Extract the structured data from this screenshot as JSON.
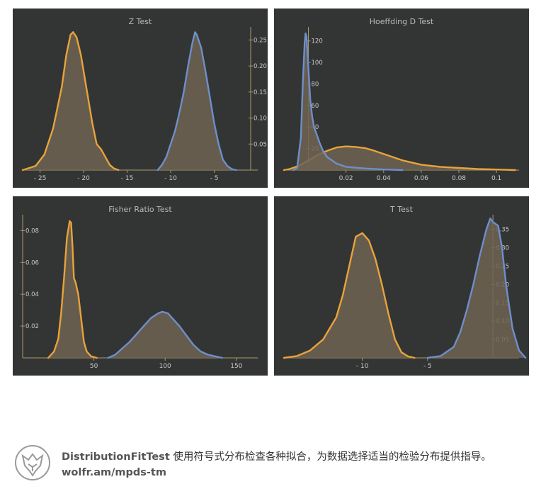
{
  "chart_data": [
    {
      "type": "area",
      "title": "Z Test",
      "x_ticks": [
        -25,
        -20,
        -15,
        -10,
        -5
      ],
      "y_ticks": [
        0.05,
        0.1,
        0.15,
        0.2,
        0.25
      ],
      "xlim": [
        -27,
        0
      ],
      "ylim": [
        0,
        0.275
      ],
      "y_axis_side": "right",
      "series": [
        {
          "color": "#e8a33a",
          "x": [
            -27,
            -25.5,
            -24.5,
            -23.5,
            -22.5,
            -22,
            -21.5,
            -21.2,
            -20.8,
            -20.3,
            -19.8,
            -19.3,
            -19,
            -18.5,
            -18,
            -17.5,
            -17,
            -16.5,
            -16
          ],
          "y": [
            0,
            0.008,
            0.03,
            0.08,
            0.16,
            0.22,
            0.26,
            0.265,
            0.255,
            0.22,
            0.17,
            0.12,
            0.09,
            0.05,
            0.04,
            0.025,
            0.01,
            0.003,
            0
          ]
        },
        {
          "color": "#6e8fc9",
          "x": [
            -11.5,
            -11,
            -10.5,
            -10,
            -9.5,
            -9,
            -8.5,
            -8,
            -7.5,
            -7.2,
            -7,
            -6.5,
            -6,
            -5.5,
            -5,
            -4.5,
            -4,
            -3.5,
            -3,
            -2.5
          ],
          "y": [
            0,
            0.01,
            0.025,
            0.05,
            0.075,
            0.11,
            0.15,
            0.2,
            0.245,
            0.265,
            0.26,
            0.235,
            0.19,
            0.14,
            0.09,
            0.05,
            0.02,
            0.008,
            0.002,
            0
          ]
        }
      ]
    },
    {
      "type": "area",
      "title": "Hoeffding D Test",
      "x_ticks": [
        0.02,
        0.04,
        0.06,
        0.08,
        0.1
      ],
      "y_ticks": [
        20,
        40,
        60,
        80,
        100,
        120
      ],
      "y_tick_labels": [
        "20",
        "40",
        "60",
        "80",
        "100",
        "120"
      ],
      "xlim": [
        -0.013,
        0.112
      ],
      "ylim": [
        0,
        133
      ],
      "y_axis_at_x": 0,
      "series": [
        {
          "color": "#e8a33a",
          "x": [
            -0.013,
            -0.01,
            -0.005,
            0,
            0.005,
            0.01,
            0.015,
            0.02,
            0.025,
            0.03,
            0.035,
            0.04,
            0.05,
            0.06,
            0.07,
            0.08,
            0.09,
            0.1,
            0.11
          ],
          "y": [
            0,
            1,
            4,
            9,
            14,
            18,
            21,
            22,
            21.5,
            20.5,
            18,
            15,
            9,
            5,
            3,
            2,
            1,
            0.5,
            0
          ]
        },
        {
          "color": "#6e8fc9",
          "x": [
            -0.008,
            -0.006,
            -0.004,
            -0.003,
            -0.002,
            -0.0015,
            -0.001,
            0,
            0.001,
            0.002,
            0.003,
            0.004,
            0.006,
            0.008,
            0.01,
            0.015,
            0.02,
            0.03,
            0.04,
            0.05
          ],
          "y": [
            0,
            2,
            30,
            80,
            118,
            127,
            124,
            95,
            65,
            50,
            40,
            35,
            25,
            17,
            12,
            6,
            3,
            1.5,
            0.5,
            0
          ]
        }
      ]
    },
    {
      "type": "area",
      "title": "Fisher Ratio Test",
      "x_ticks": [
        50,
        100,
        150
      ],
      "y_ticks": [
        0.02,
        0.04,
        0.06,
        0.08
      ],
      "y_tick_labels": [
        "0.02",
        "0.04",
        "0.06",
        "0.08"
      ],
      "xlim": [
        0,
        165
      ],
      "ylim": [
        0,
        0.09
      ],
      "y_axis_at_x": 0,
      "series": [
        {
          "color": "#e8a33a",
          "x": [
            18,
            22,
            25,
            27,
            29,
            31,
            33,
            34,
            35,
            36,
            37,
            39,
            41,
            43,
            45,
            48,
            52
          ],
          "y": [
            0,
            0.004,
            0.012,
            0.028,
            0.05,
            0.075,
            0.086,
            0.085,
            0.07,
            0.05,
            0.048,
            0.04,
            0.025,
            0.01,
            0.004,
            0.001,
            0
          ]
        },
        {
          "color": "#6e8fc9",
          "x": [
            60,
            65,
            70,
            75,
            80,
            85,
            90,
            95,
            98,
            102,
            105,
            110,
            115,
            120,
            125,
            130,
            135,
            140
          ],
          "y": [
            0,
            0.002,
            0.006,
            0.01,
            0.015,
            0.02,
            0.025,
            0.028,
            0.029,
            0.028,
            0.025,
            0.02,
            0.014,
            0.008,
            0.004,
            0.002,
            0.001,
            0
          ]
        }
      ]
    },
    {
      "type": "area",
      "title": "T Test",
      "x_ticks": [
        -10,
        -5
      ],
      "y_ticks": [
        0.05,
        0.1,
        0.15,
        0.2,
        0.25,
        0.3,
        0.35
      ],
      "y_tick_labels": [
        "0.05",
        "0.10",
        "0.15",
        "0.20",
        "0.25",
        "0.30",
        "0.35"
      ],
      "xlim": [
        -16,
        2
      ],
      "ylim": [
        0,
        0.39
      ],
      "y_axis_at_x": 0,
      "series": [
        {
          "color": "#e8a33a",
          "x": [
            -16,
            -15,
            -14,
            -13,
            -12,
            -11.5,
            -11,
            -10.5,
            -10,
            -9.5,
            -9,
            -8.5,
            -8,
            -7.5,
            -7,
            -6.5,
            -6
          ],
          "y": [
            0,
            0.005,
            0.02,
            0.05,
            0.11,
            0.17,
            0.25,
            0.33,
            0.34,
            0.32,
            0.27,
            0.2,
            0.12,
            0.05,
            0.015,
            0.004,
            0
          ]
        },
        {
          "color": "#6e8fc9",
          "x": [
            -5,
            -4,
            -3,
            -2.5,
            -2,
            -1.5,
            -1,
            -0.5,
            -0.2,
            0,
            0.4,
            0.7,
            1,
            1.5,
            2,
            2.5
          ],
          "y": [
            0,
            0.005,
            0.03,
            0.07,
            0.13,
            0.2,
            0.28,
            0.35,
            0.38,
            0.37,
            0.36,
            0.3,
            0.2,
            0.08,
            0.02,
            0
          ]
        }
      ]
    }
  ],
  "footer": {
    "tool_name": "DistributionFitTest",
    "description": " 使用符号式分布检查各种拟合，为数据选择适当的检验分布提供指导。",
    "link": "wolfr.am/mpds-tm"
  }
}
